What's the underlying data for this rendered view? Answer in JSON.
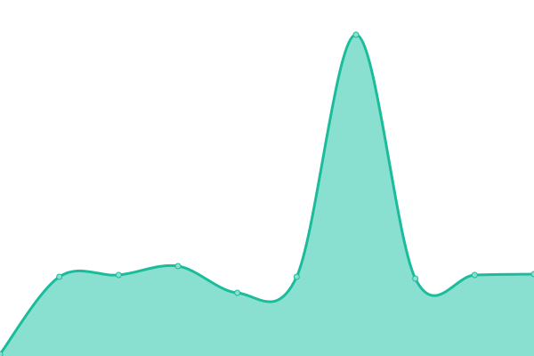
{
  "chart_data": {
    "type": "area",
    "title": "",
    "xlabel": "",
    "ylabel": "",
    "x": [
      0,
      1,
      2,
      3,
      4,
      5,
      6,
      7,
      8,
      9
    ],
    "values": [
      2,
      89,
      91,
      101,
      71,
      89,
      361,
      87,
      91,
      92
    ],
    "ylim": [
      0,
      400
    ],
    "grid": false,
    "legend": "none",
    "smooth": true,
    "colors": {
      "line": "#1abc9c",
      "fill": "#8ae0d0",
      "point_fill": "#8ae0d0",
      "point_stroke": "#1abc9c"
    }
  }
}
